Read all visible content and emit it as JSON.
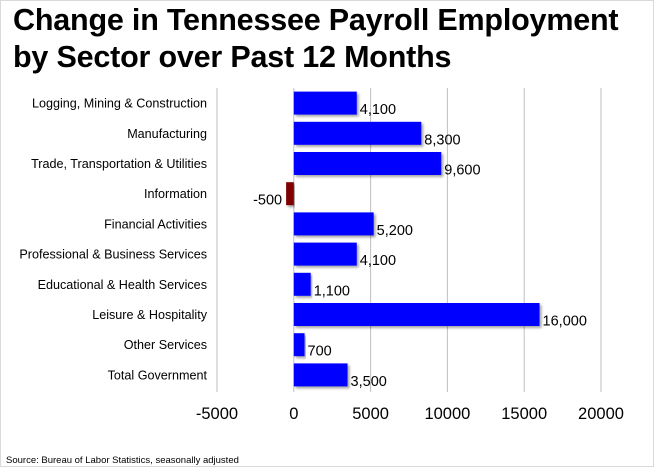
{
  "chart_data": {
    "type": "bar",
    "orientation": "horizontal",
    "title": "Change in Tennessee Payroll Employment by Sector over Past 12 Months",
    "title_lines": [
      "Change in Tennessee Payroll Employment",
      "by Sector over Past 12 Months"
    ],
    "categories": [
      "Logging, Mining & Construction",
      "Manufacturing",
      "Trade, Transportation & Utilities",
      "Information",
      "Financial Activities",
      "Professional & Business Services",
      "Educational & Health Services",
      "Leisure & Hospitality",
      "Other Services",
      "Total Government"
    ],
    "values": [
      4100,
      8300,
      9600,
      -500,
      5200,
      4100,
      1100,
      16000,
      700,
      3500
    ],
    "value_labels": [
      "4,100",
      "8,300",
      "9,600",
      "-500",
      "5,200",
      "4,100",
      "1,100",
      "16,000",
      "700",
      "3,500"
    ],
    "xlim": [
      -5000,
      20000
    ],
    "xticks": [
      -5000,
      0,
      5000,
      10000,
      15000,
      20000
    ],
    "xtick_labels": [
      "-5000",
      "0",
      "5000",
      "10000",
      "15000",
      "20000"
    ],
    "grid": "vertical",
    "xlabel": "",
    "ylabel": "",
    "colors": {
      "positive": "#0000ff",
      "negative": "#800000",
      "grid": "#bfbfbf"
    }
  },
  "source_note": "Source: Bureau of Labor Statistics, seasonally adjusted"
}
